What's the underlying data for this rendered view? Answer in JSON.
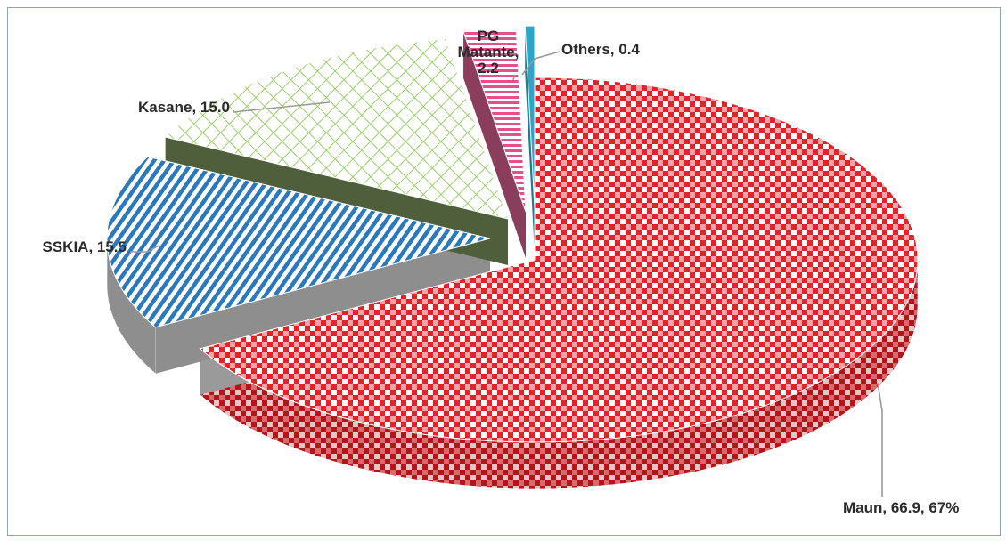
{
  "chart_data": {
    "type": "pie",
    "title": "",
    "slices": [
      {
        "label": "Maun",
        "value": 66.9,
        "text": "Maun, 66.9, 67%",
        "color": "#e8202a",
        "pattern": "checker"
      },
      {
        "label": "SSKIA",
        "value": 15.5,
        "text": "SSKIA, 15.5",
        "color": "#2a78c0",
        "pattern": "diagonal-stripes"
      },
      {
        "label": "Kasane",
        "value": 15.0,
        "text": "Kasane, 15.0",
        "color": "#9ccf6a",
        "pattern": "crosshatch"
      },
      {
        "label": "PG Matante",
        "value": 2.2,
        "text_lines": [
          "PG",
          "Matante,",
          "2.2"
        ],
        "color": "#e84f8a",
        "pattern": "horizontal-stripes"
      },
      {
        "label": "Others",
        "value": 0.4,
        "text": "Others, 0.4",
        "color": "#2aa6c8",
        "pattern": "solid"
      }
    ],
    "style": "3d-exploded",
    "legend": "none"
  }
}
